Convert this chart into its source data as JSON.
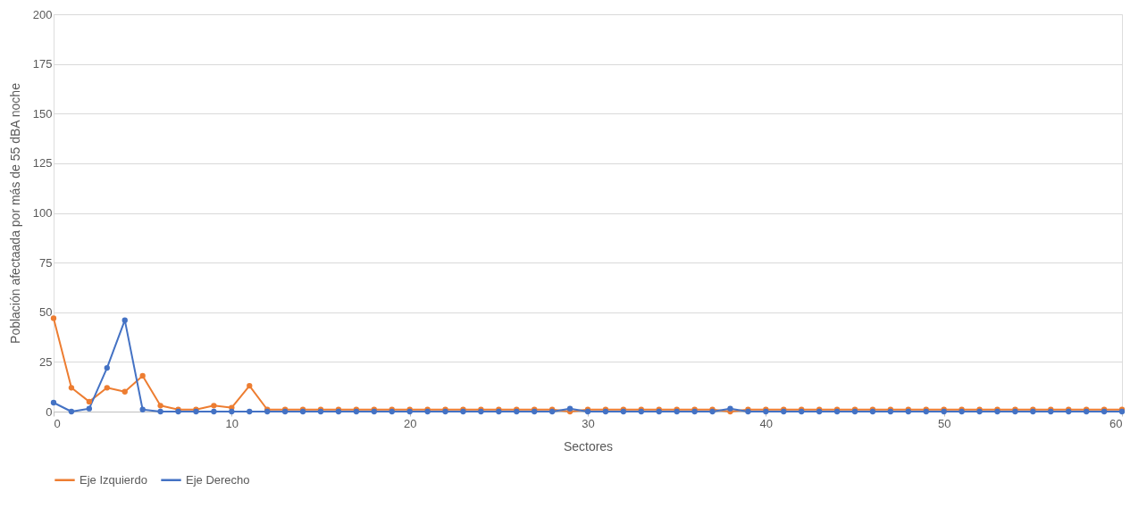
{
  "chart_data": {
    "type": "line",
    "xlabel": "Sectores",
    "ylabel": "Población afectaada por más de 55 dBA noche",
    "x": [
      0,
      1,
      2,
      3,
      4,
      5,
      6,
      7,
      8,
      9,
      10,
      11,
      12,
      13,
      14,
      15,
      16,
      17,
      18,
      19,
      20,
      21,
      22,
      23,
      24,
      25,
      26,
      27,
      28,
      29,
      30,
      31,
      32,
      33,
      34,
      35,
      36,
      37,
      38,
      39,
      40,
      41,
      42,
      43,
      44,
      45,
      46,
      47,
      48,
      49,
      50,
      51,
      52,
      53,
      54,
      55,
      56,
      57,
      58,
      59,
      60
    ],
    "series": [
      {
        "name": "Eje Izquierdo",
        "color": "#ed7d31",
        "values": [
          47,
          12,
          5,
          12,
          10,
          18,
          3,
          1,
          1,
          3,
          2,
          13,
          1,
          1,
          1,
          1,
          1,
          1,
          1,
          1,
          1,
          1,
          1,
          1,
          1,
          1,
          1,
          1,
          1,
          0,
          1,
          1,
          1,
          1,
          1,
          1,
          1,
          1,
          0,
          1,
          1,
          1,
          1,
          1,
          1,
          1,
          1,
          1,
          1,
          1,
          1,
          1,
          1,
          1,
          1,
          1,
          1,
          1,
          1,
          1,
          1
        ]
      },
      {
        "name": "Eje Derecho",
        "color": "#4472c4",
        "values": [
          4.5,
          0,
          1.5,
          22,
          46,
          1,
          0,
          0,
          0,
          0,
          0,
          0,
          0,
          0,
          0,
          0,
          0,
          0,
          0,
          0,
          0,
          0,
          0,
          0,
          0,
          0,
          0,
          0,
          0,
          1.5,
          0,
          0,
          0,
          0,
          0,
          0,
          0,
          0,
          1.5,
          0,
          0,
          0,
          0,
          0,
          0,
          0,
          0,
          0,
          0,
          0,
          0,
          0,
          0,
          0,
          0,
          0,
          0,
          0,
          0,
          0,
          0
        ]
      }
    ],
    "xlim": [
      0,
      60
    ],
    "xticks": [
      0,
      10,
      20,
      30,
      40,
      50,
      60
    ],
    "ylim": [
      0,
      200
    ],
    "yticks": [
      0,
      25,
      50,
      75,
      100,
      125,
      150,
      175,
      200
    ],
    "grid": "y",
    "legend": "bottom",
    "marker": "circle",
    "line_style": "solid"
  }
}
